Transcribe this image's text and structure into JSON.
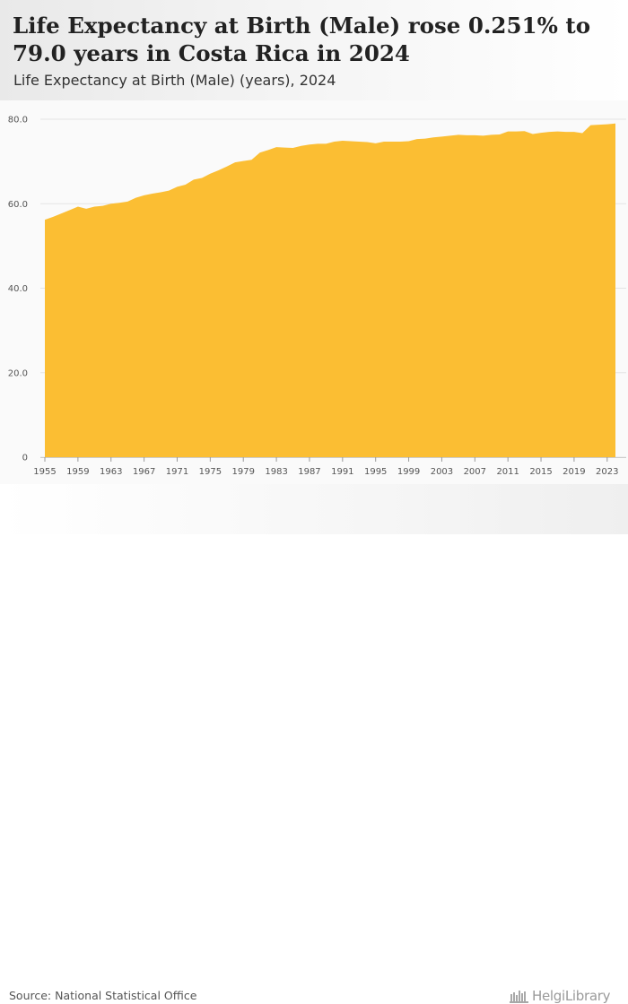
{
  "header": {
    "title": "Life Expectancy at Birth (Male) rose 0.251% to 79.0 years in Costa Rica in 2024",
    "subtitle": "Life Expectancy at Birth (Male) (years), 2024"
  },
  "footer": {
    "source": "Source: National Statistical Office",
    "logo_text": "HelgiLibrary"
  },
  "colors": {
    "area": "#fbbe33",
    "grid": "#e4e4e4",
    "axis_text": "#555555"
  },
  "chart_data": {
    "type": "area",
    "title": "Life Expectancy at Birth (Male) rose 0.251% to 79.0 years in Costa Rica in 2024",
    "subtitle": "Life Expectancy at Birth (Male) (years), 2024",
    "xlabel": "",
    "ylabel": "",
    "ylim": [
      0,
      80
    ],
    "yticks": [
      0,
      20,
      40,
      60,
      80
    ],
    "ytick_labels": [
      "0",
      "20.0",
      "40.0",
      "60.0",
      "80.0"
    ],
    "xticks": [
      1955,
      1959,
      1963,
      1967,
      1971,
      1975,
      1979,
      1983,
      1987,
      1991,
      1995,
      1999,
      2003,
      2007,
      2011,
      2015,
      2019,
      2023
    ],
    "xtick_labels": [
      "1955",
      "1959",
      "1963",
      "1967",
      "1971",
      "1975",
      "1979",
      "1983",
      "1987",
      "1991",
      "1995",
      "1999",
      "2003",
      "2007",
      "2011",
      "2015",
      "2019",
      "2023"
    ],
    "grid": true,
    "series": [
      {
        "name": "Life Expectancy at Birth (Male)",
        "x": [
          1955,
          1956,
          1957,
          1958,
          1959,
          1960,
          1961,
          1962,
          1963,
          1964,
          1965,
          1966,
          1967,
          1968,
          1969,
          1970,
          1971,
          1972,
          1973,
          1974,
          1975,
          1976,
          1977,
          1978,
          1979,
          1980,
          1981,
          1982,
          1983,
          1984,
          1985,
          1986,
          1987,
          1988,
          1989,
          1990,
          1991,
          1992,
          1993,
          1994,
          1995,
          1996,
          1997,
          1998,
          1999,
          2000,
          2001,
          2002,
          2003,
          2004,
          2005,
          2006,
          2007,
          2008,
          2009,
          2010,
          2011,
          2012,
          2013,
          2014,
          2015,
          2016,
          2017,
          2018,
          2019,
          2020,
          2021,
          2022,
          2023,
          2024
        ],
        "values": [
          56.2,
          56.9,
          57.7,
          58.5,
          59.3,
          58.8,
          59.3,
          59.5,
          60.0,
          60.2,
          60.5,
          61.4,
          62.0,
          62.4,
          62.7,
          63.1,
          64.0,
          64.5,
          65.7,
          66.1,
          67.1,
          67.9,
          68.8,
          69.8,
          70.1,
          70.4,
          72.1,
          72.7,
          73.4,
          73.3,
          73.2,
          73.7,
          74.0,
          74.2,
          74.2,
          74.7,
          74.9,
          74.8,
          74.7,
          74.6,
          74.3,
          74.7,
          74.7,
          74.7,
          74.8,
          75.3,
          75.4,
          75.7,
          75.9,
          76.1,
          76.3,
          76.2,
          76.2,
          76.1,
          76.3,
          76.4,
          77.1,
          77.1,
          77.2,
          76.5,
          76.8,
          77.0,
          77.1,
          77.0,
          77.0,
          76.7,
          78.6,
          78.7,
          78.8,
          79.0
        ]
      }
    ]
  }
}
